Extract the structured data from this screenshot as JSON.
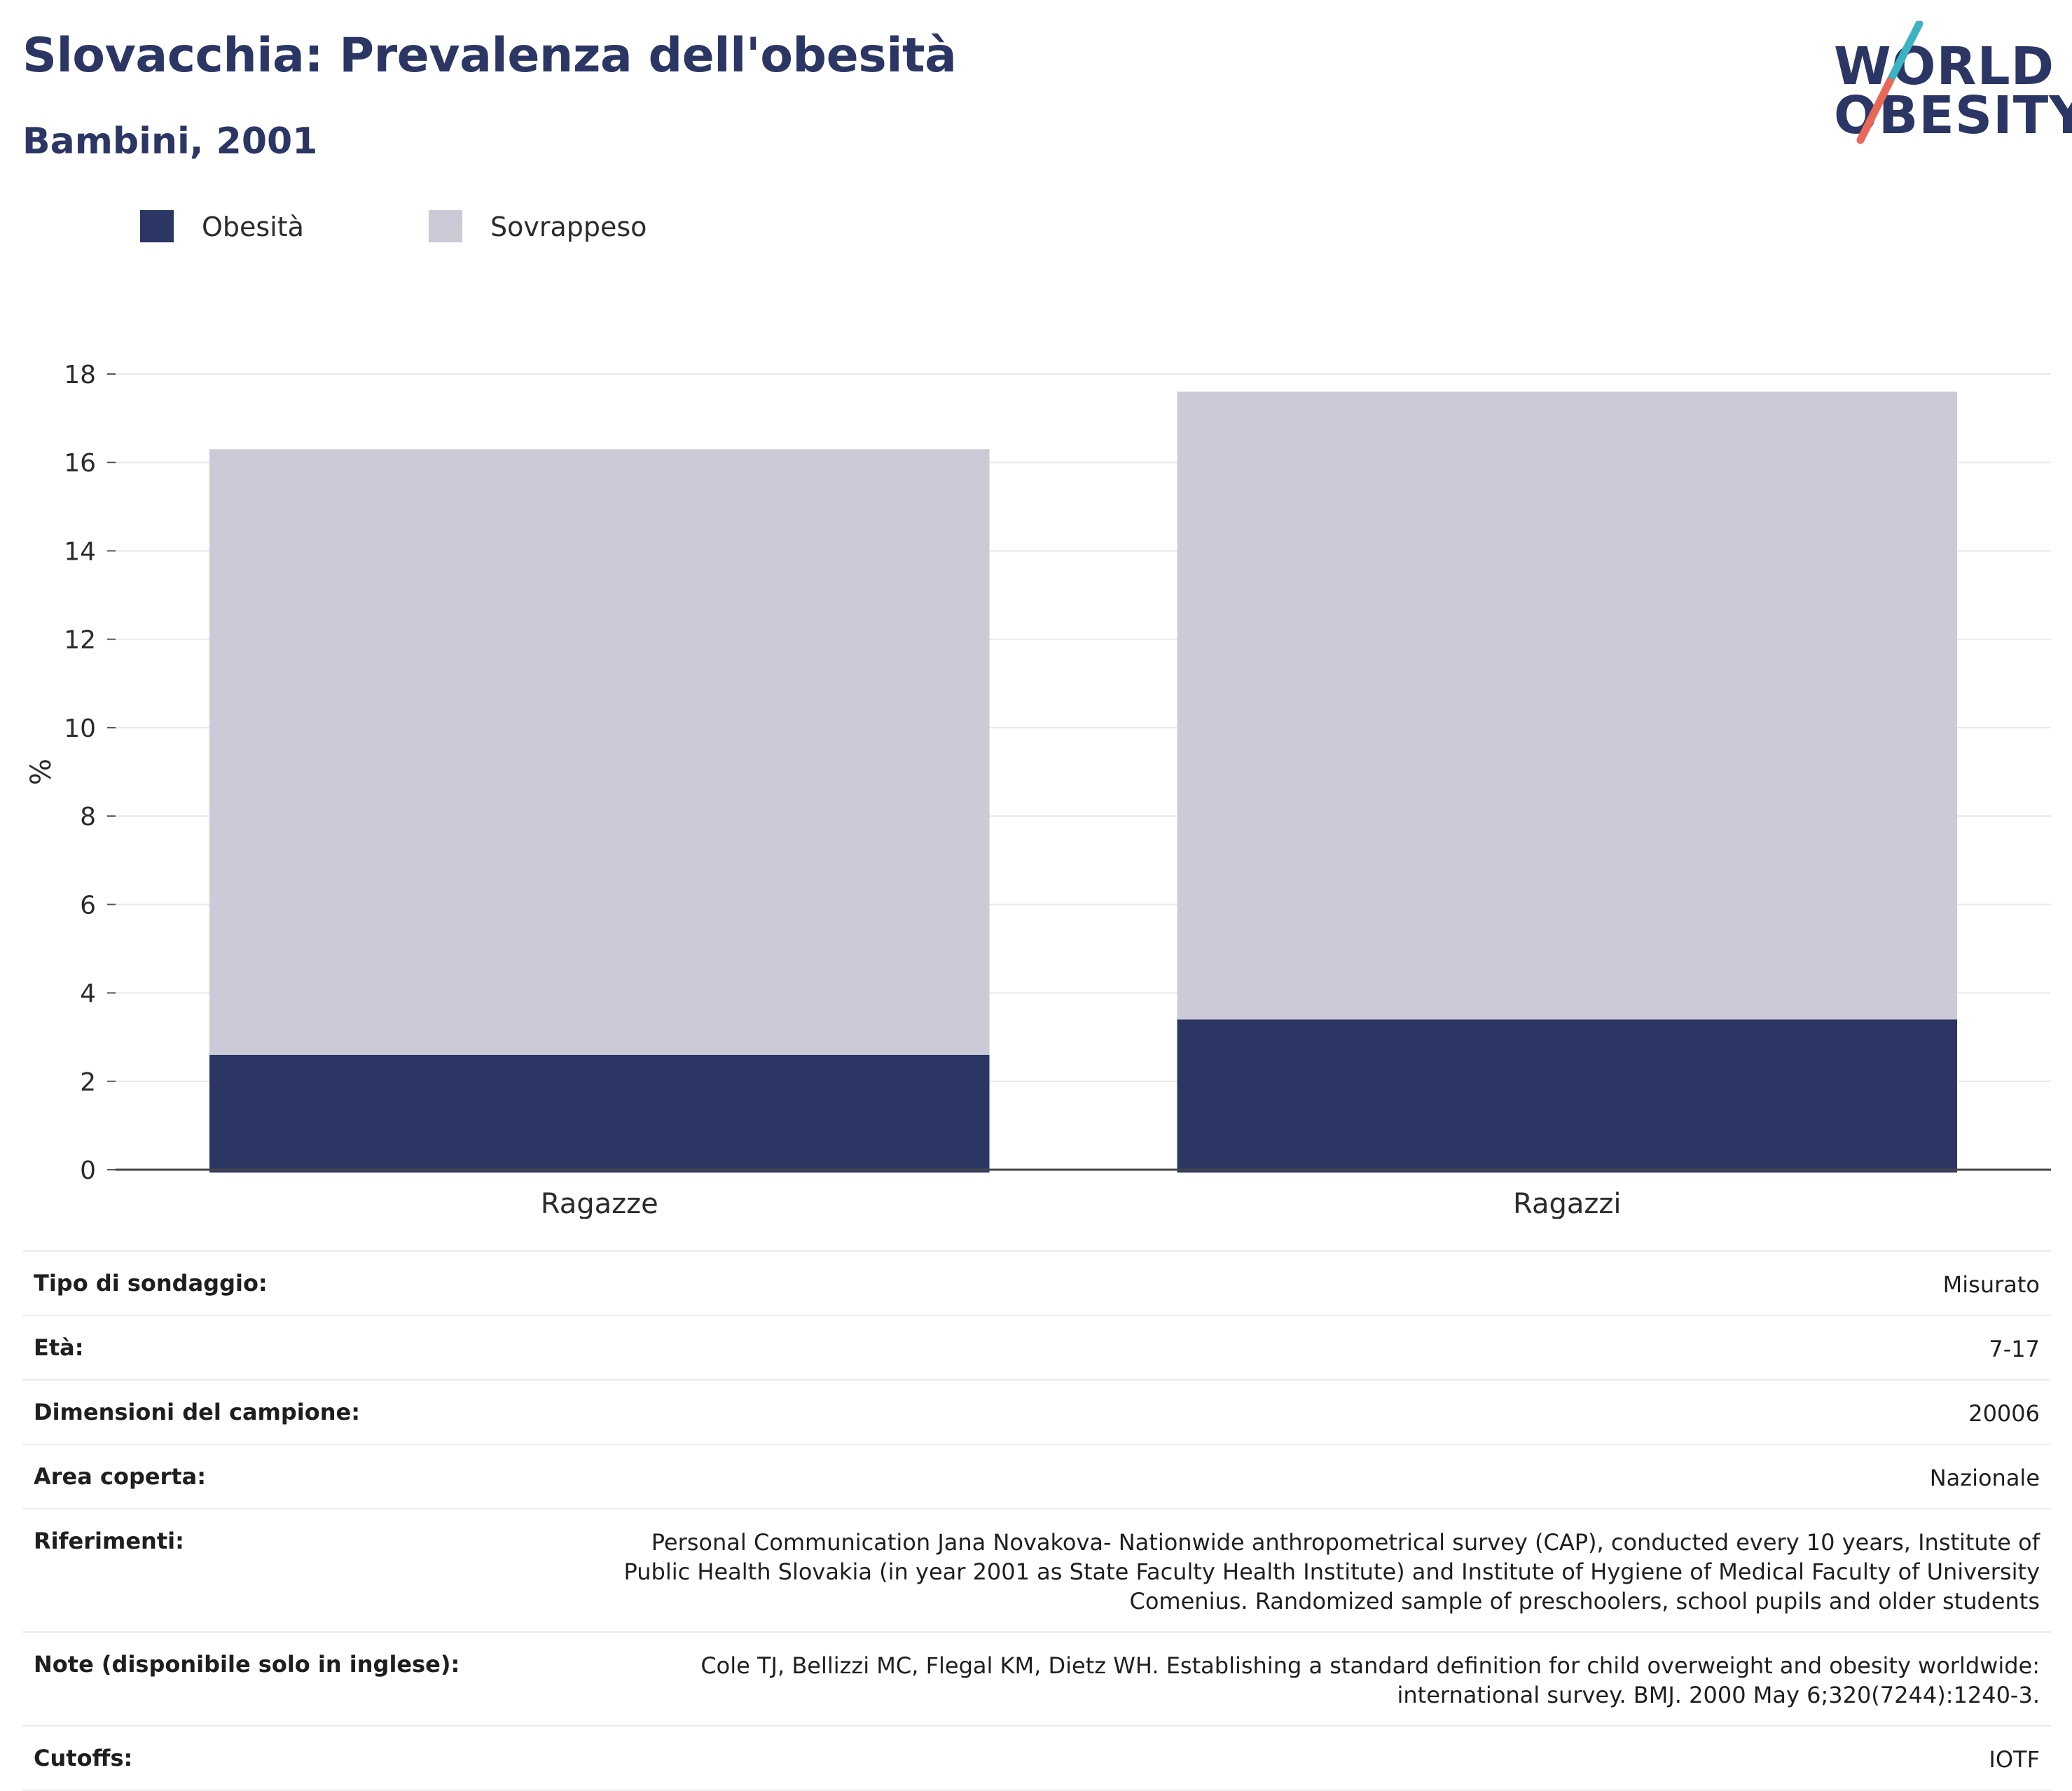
{
  "header": {
    "title": "Slovacchia: Prevalenza dell'obesità",
    "subtitle": "Bambini, 2001"
  },
  "logo": {
    "line1": "WORLD",
    "line2": "OBESITY",
    "colors": {
      "text": "#2b3664",
      "slash_top": "#3bb3c3",
      "slash_bottom": "#e8685a"
    }
  },
  "legend": {
    "items": [
      {
        "label": "Obesità",
        "color": "#2b3664"
      },
      {
        "label": "Sovrappeso",
        "color": "#cacbd7"
      }
    ]
  },
  "chart_data": {
    "type": "bar",
    "stacked": true,
    "categories": [
      "Ragazze",
      "Ragazzi"
    ],
    "series": [
      {
        "name": "Obesità",
        "values": [
          2.6,
          3.4
        ],
        "color": "#2b3664"
      },
      {
        "name": "Sovrappeso",
        "values": [
          13.7,
          14.2
        ],
        "color": "#cacbd7"
      }
    ],
    "ylabel": "%",
    "ylim": [
      0,
      18
    ],
    "yticks": [
      0,
      2,
      4,
      6,
      8,
      10,
      12,
      14,
      16,
      18
    ],
    "grid": true,
    "legend_position": "top-left"
  },
  "info": {
    "rows": [
      {
        "label": "Tipo di sondaggio:",
        "value": "Misurato"
      },
      {
        "label": "Età:",
        "value": "7-17"
      },
      {
        "label": "Dimensioni del campione:",
        "value": "20006"
      },
      {
        "label": "Area coperta:",
        "value": "Nazionale"
      },
      {
        "label": "Riferimenti:",
        "value": "Personal Communication Jana Novakova- Nationwide anthropometrical survey (CAP), conducted every 10 years, Institute of Public Health Slovakia (in year 2001 as State Faculty Health Institute) and Institute of Hygiene of Medical Faculty of University Comenius. Randomized sample of preschoolers, school pupils and older students"
      },
      {
        "label": "Note (disponibile solo in inglese):",
        "value": "Cole TJ, Bellizzi MC, Flegal KM, Dietz WH. Establishing a standard definition for child overweight and obesity worldwide: international survey. BMJ. 2000 May 6;320(7244):1240-3."
      },
      {
        "label": "Cutoffs:",
        "value": "IOTF"
      }
    ]
  }
}
